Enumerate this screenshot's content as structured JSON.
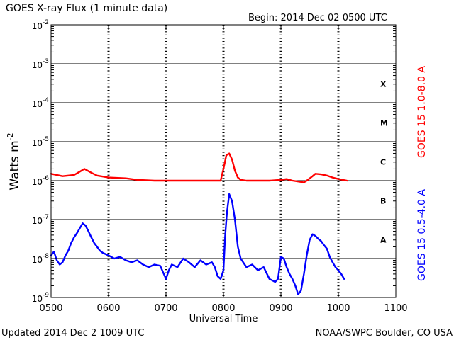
{
  "chart_data": {
    "type": "line",
    "title": "GOES X-ray Flux (1 minute data)",
    "begin_label": "Begin: 2014 Dec 02 0500 UTC",
    "updated_label": "Updated 2014 Dec  2 1009 UTC",
    "credit_label": "NOAA/SWPC Boulder, CO USA",
    "xlabel": "Universal Time",
    "ylabel_main": "Watts m",
    "ylabel_exp": "-2",
    "log_y": true,
    "xlim": [
      5.0,
      11.0
    ],
    "ylim_exp": [
      -9,
      -2
    ],
    "x_ticks": [
      "0500",
      "0600",
      "0700",
      "0800",
      "0900",
      "1000",
      "1100"
    ],
    "y_tick_exponents": [
      "-9",
      "-8",
      "-7",
      "-6",
      "-5",
      "-4",
      "-3",
      "-2"
    ],
    "y_tick_base": "10",
    "class_labels": [
      {
        "label": "A",
        "log_flux": -7.5
      },
      {
        "label": "B",
        "log_flux": -6.5
      },
      {
        "label": "C",
        "log_flux": -5.5
      },
      {
        "label": "M",
        "log_flux": -4.5
      },
      {
        "label": "X",
        "log_flux": -3.5
      }
    ],
    "grid": true,
    "colors": {
      "long": "#ff0000",
      "short": "#0000ff",
      "axes": "#000000"
    },
    "series": [
      {
        "name": "GOES 15 1.0-8.0 A",
        "color": "#ff0000",
        "x": [
          5.0,
          5.2,
          5.4,
          5.5,
          5.58,
          5.7,
          5.8,
          6.0,
          6.3,
          6.5,
          6.8,
          7.0,
          7.2,
          7.4,
          7.6,
          7.8,
          7.95,
          8.0,
          8.05,
          8.1,
          8.15,
          8.2,
          8.25,
          8.3,
          8.4,
          8.6,
          8.8,
          9.0,
          9.1,
          9.2,
          9.3,
          9.4,
          9.45,
          9.55,
          9.6,
          9.7,
          9.8,
          9.9,
          10.0,
          10.15
        ],
        "y": [
          1.5e-06,
          1.3e-06,
          1.4e-06,
          1.7e-06,
          2e-06,
          1.6e-06,
          1.35e-06,
          1.2e-06,
          1.15e-06,
          1.05e-06,
          1e-06,
          1e-06,
          1e-06,
          1e-06,
          1e-06,
          1e-06,
          1e-06,
          2e-06,
          4.5e-06,
          5e-06,
          3.5e-06,
          1.8e-06,
          1.2e-06,
          1.05e-06,
          1e-06,
          1e-06,
          1e-06,
          1.05e-06,
          1.1e-06,
          1e-06,
          9.5e-07,
          9e-07,
          1e-06,
          1.3e-06,
          1.5e-06,
          1.45e-06,
          1.35e-06,
          1.2e-06,
          1.1e-06,
          1e-06
        ]
      },
      {
        "name": "GOES 15 0.5-4.0 A",
        "color": "#0000ff",
        "x": [
          5.0,
          5.05,
          5.1,
          5.15,
          5.2,
          5.25,
          5.3,
          5.35,
          5.4,
          5.45,
          5.5,
          5.55,
          5.6,
          5.65,
          5.7,
          5.75,
          5.8,
          5.85,
          5.9,
          6.0,
          6.1,
          6.2,
          6.3,
          6.4,
          6.5,
          6.6,
          6.7,
          6.8,
          6.9,
          7.0,
          7.05,
          7.1,
          7.2,
          7.3,
          7.4,
          7.5,
          7.6,
          7.7,
          7.8,
          7.85,
          7.9,
          7.95,
          8.0,
          8.03,
          8.06,
          8.1,
          8.15,
          8.2,
          8.25,
          8.3,
          8.4,
          8.5,
          8.6,
          8.7,
          8.8,
          8.9,
          8.95,
          9.0,
          9.05,
          9.1,
          9.15,
          9.2,
          9.25,
          9.3,
          9.35,
          9.4,
          9.45,
          9.5,
          9.55,
          9.6,
          9.65,
          9.7,
          9.75,
          9.8,
          9.85,
          9.9,
          9.95,
          10.0,
          10.05,
          10.1
        ],
        "y": [
          1.2e-08,
          1.5e-08,
          9e-09,
          7e-09,
          8e-09,
          1.2e-08,
          1.6e-08,
          2.5e-08,
          3.5e-08,
          4.5e-08,
          6e-08,
          8e-08,
          7e-08,
          5e-08,
          3.5e-08,
          2.5e-08,
          2e-08,
          1.6e-08,
          1.4e-08,
          1.2e-08,
          1e-08,
          1.1e-08,
          9e-09,
          8e-09,
          9e-09,
          7e-09,
          6e-09,
          7e-09,
          6.5e-09,
          3e-09,
          5e-09,
          7e-09,
          6e-09,
          1e-08,
          8e-09,
          6e-09,
          9e-09,
          7e-09,
          8e-09,
          6e-09,
          3.5e-09,
          3e-09,
          5e-09,
          3.8e-08,
          1.5e-07,
          4.5e-07,
          3e-07,
          1e-07,
          2e-08,
          1e-08,
          6e-09,
          7e-09,
          5e-09,
          6e-09,
          3e-09,
          2.5e-09,
          3e-09,
          1.1e-08,
          1e-08,
          6e-09,
          4e-09,
          3e-09,
          2e-09,
          1.2e-09,
          1.5e-09,
          4e-09,
          1.2e-08,
          3e-08,
          4.2e-08,
          3.8e-08,
          3.2e-08,
          2.8e-08,
          2.2e-08,
          1.8e-08,
          1.1e-08,
          8e-09,
          6e-09,
          5e-09,
          4e-09,
          3e-09
        ]
      }
    ]
  }
}
